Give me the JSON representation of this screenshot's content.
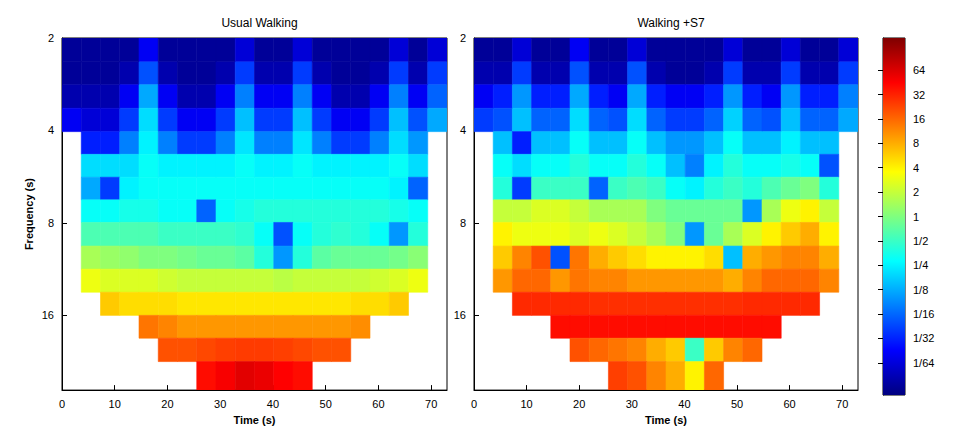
{
  "chart_data": [
    {
      "type": "heatmap",
      "title": "Usual Walking",
      "xlabel": "Time (s)",
      "ylabel": "Frequency (s)",
      "log": "y",
      "grid": false,
      "xlim": [
        0,
        73
      ],
      "xticks": [
        0,
        10,
        20,
        30,
        40,
        50,
        60,
        70
      ],
      "ylim": [
        2,
        28
      ],
      "yticks": [
        2,
        4,
        8,
        16
      ],
      "x": [
        1.8,
        5.5,
        9.1,
        12.8,
        16.4,
        20.1,
        23.7,
        27.4,
        31,
        34.7,
        38.3,
        42,
        45.6,
        49.3,
        52.9,
        56.6,
        60.2,
        63.9,
        67.5,
        71.2
      ],
      "y": [
        2.2,
        2.6,
        3.1,
        3.7,
        4.4,
        5.2,
        6.2,
        7.3,
        8.7,
        10.4,
        12.3,
        14.7,
        17.4,
        20.7,
        24.7
      ],
      "power": [
        [
          0.008,
          0.008,
          0.008,
          0.008,
          0.02,
          0.008,
          0.008,
          0.008,
          0.008,
          0.015,
          0.008,
          0.008,
          0.015,
          0.008,
          0.008,
          0.008,
          0.008,
          0.015,
          0.008,
          0.015
        ],
        [
          0.008,
          0.008,
          0.008,
          0.01,
          0.05,
          0.01,
          0.008,
          0.008,
          0.01,
          0.04,
          0.01,
          0.01,
          0.04,
          0.01,
          0.008,
          0.008,
          0.01,
          0.04,
          0.01,
          0.04
        ],
        [
          0.01,
          0.01,
          0.01,
          0.02,
          0.12,
          0.02,
          0.01,
          0.01,
          0.02,
          0.08,
          0.02,
          0.02,
          0.08,
          0.02,
          0.01,
          0.01,
          0.02,
          0.08,
          0.02,
          0.06
        ],
        [
          0.02,
          0.015,
          0.015,
          0.04,
          0.2,
          0.04,
          0.02,
          0.02,
          0.04,
          0.15,
          0.04,
          0.04,
          0.15,
          0.04,
          0.02,
          0.02,
          0.04,
          0.15,
          0.05,
          0.12
        ],
        [
          null,
          0.03,
          0.03,
          0.08,
          0.25,
          0.08,
          0.04,
          0.04,
          0.08,
          0.22,
          0.08,
          0.08,
          0.22,
          0.08,
          0.04,
          0.04,
          0.08,
          0.2,
          0.1,
          null
        ],
        [
          null,
          0.2,
          0.2,
          0.2,
          0.3,
          0.25,
          0.25,
          0.25,
          0.25,
          0.3,
          0.25,
          0.25,
          0.3,
          0.25,
          0.25,
          0.25,
          0.25,
          0.3,
          0.2,
          null
        ],
        [
          null,
          0.12,
          0.04,
          0.25,
          0.3,
          0.3,
          0.3,
          0.3,
          0.3,
          0.3,
          0.3,
          0.3,
          0.3,
          0.3,
          0.3,
          0.3,
          0.3,
          0.25,
          0.06,
          null
        ],
        [
          null,
          0.3,
          0.3,
          0.35,
          0.35,
          0.3,
          0.3,
          0.06,
          0.3,
          0.35,
          0.4,
          0.4,
          0.4,
          0.4,
          0.4,
          0.4,
          0.4,
          0.35,
          0.3,
          null
        ],
        [
          null,
          0.6,
          0.6,
          0.6,
          0.6,
          0.5,
          0.5,
          0.5,
          0.5,
          0.45,
          0.3,
          0.05,
          0.3,
          0.4,
          0.45,
          0.4,
          0.3,
          0.1,
          0.4,
          null
        ],
        [
          null,
          1.5,
          1.3,
          1.2,
          1,
          1,
          0.9,
          0.8,
          0.8,
          0.7,
          0.4,
          0.1,
          0.4,
          0.7,
          0.8,
          0.8,
          0.8,
          0.9,
          1.1,
          null
        ],
        [
          null,
          3,
          2.5,
          2.5,
          2.5,
          2.2,
          2,
          2,
          2,
          2,
          2,
          1.8,
          2,
          2,
          2,
          2,
          2.2,
          2.5,
          3,
          null
        ],
        [
          null,
          null,
          6,
          5,
          5,
          5,
          4.5,
          4.5,
          4.5,
          4.5,
          4.5,
          4.5,
          4.5,
          4.5,
          4.5,
          5,
          5,
          6,
          null,
          null
        ],
        [
          null,
          null,
          null,
          null,
          14,
          12,
          10,
          10,
          10,
          10,
          10,
          10,
          10,
          10,
          10,
          11,
          null,
          null,
          null,
          null
        ],
        [
          null,
          null,
          null,
          null,
          null,
          20,
          20,
          22,
          24,
          25,
          25,
          24,
          22,
          20,
          20,
          null,
          null,
          null,
          null,
          null
        ],
        [
          null,
          null,
          null,
          null,
          null,
          null,
          null,
          40,
          48,
          60,
          55,
          45,
          40,
          null,
          null,
          null,
          null,
          null,
          null,
          null
        ]
      ]
    },
    {
      "type": "heatmap",
      "title": "Walking +S7",
      "xlabel": "Time (s)",
      "log": "y",
      "grid": false,
      "xlim": [
        0,
        73
      ],
      "xticks": [
        0,
        10,
        20,
        30,
        40,
        50,
        60,
        70
      ],
      "ylim": [
        2,
        28
      ],
      "yticks": [
        2,
        4,
        8,
        16
      ],
      "x": [
        1.8,
        5.5,
        9.1,
        12.8,
        16.4,
        20.1,
        23.7,
        27.4,
        31,
        34.7,
        38.3,
        42,
        45.6,
        49.3,
        52.9,
        56.6,
        60.2,
        63.9,
        67.5,
        71.2
      ],
      "y": [
        2.2,
        2.6,
        3.1,
        3.7,
        4.4,
        5.2,
        6.2,
        7.3,
        8.7,
        10.4,
        12.3,
        14.7,
        17.4,
        20.7,
        24.7
      ],
      "power": [
        [
          0.008,
          0.008,
          0.015,
          0.008,
          0.008,
          0.02,
          0.008,
          0.008,
          0.015,
          0.008,
          0.008,
          0.008,
          0.008,
          0.015,
          0.008,
          0.008,
          0.015,
          0.008,
          0.008,
          0.015
        ],
        [
          0.01,
          0.01,
          0.04,
          0.01,
          0.01,
          0.05,
          0.01,
          0.01,
          0.05,
          0.01,
          0.008,
          0.008,
          0.01,
          0.04,
          0.01,
          0.01,
          0.04,
          0.01,
          0.01,
          0.04
        ],
        [
          0.02,
          0.03,
          0.1,
          0.03,
          0.03,
          0.12,
          0.03,
          0.02,
          0.12,
          0.03,
          0.02,
          0.02,
          0.03,
          0.1,
          0.03,
          0.02,
          0.1,
          0.03,
          0.03,
          0.08
        ],
        [
          0.04,
          0.05,
          0.15,
          0.06,
          0.06,
          0.2,
          0.06,
          0.05,
          0.2,
          0.06,
          0.04,
          0.04,
          0.06,
          0.18,
          0.06,
          0.05,
          0.15,
          0.06,
          0.06,
          0.12
        ],
        [
          null,
          0.15,
          0.03,
          0.15,
          0.15,
          0.3,
          0.15,
          0.15,
          0.3,
          0.15,
          0.1,
          0.1,
          0.15,
          0.3,
          0.15,
          0.15,
          0.25,
          0.15,
          0.15,
          null
        ],
        [
          null,
          0.3,
          0.2,
          0.3,
          0.3,
          0.4,
          0.3,
          0.3,
          0.4,
          0.3,
          0.15,
          0.08,
          0.25,
          0.4,
          0.3,
          0.3,
          0.35,
          0.3,
          0.05,
          null
        ],
        [
          null,
          0.4,
          0.04,
          0.5,
          0.5,
          0.5,
          0.06,
          0.5,
          0.6,
          0.5,
          0.3,
          0.25,
          0.4,
          0.5,
          0.4,
          0.6,
          0.8,
          1,
          0.4,
          null
        ],
        [
          null,
          2,
          2,
          2.5,
          2.5,
          2,
          1.5,
          1.5,
          1.5,
          1,
          0.8,
          0.8,
          0.8,
          0.8,
          0.1,
          1.5,
          3,
          4,
          2,
          null
        ],
        [
          null,
          4,
          3,
          3,
          3,
          2.5,
          3,
          2.5,
          2,
          1.5,
          1,
          0.1,
          0.8,
          1.5,
          2.5,
          4,
          6,
          8,
          4,
          null
        ],
        [
          null,
          6,
          12,
          20,
          0.05,
          14,
          8,
          6,
          5,
          4,
          4,
          4,
          5,
          0.15,
          8,
          10,
          12,
          12,
          8,
          null
        ],
        [
          null,
          10,
          16,
          16,
          10,
          14,
          12,
          12,
          10,
          10,
          10,
          10,
          10,
          8,
          12,
          16,
          16,
          16,
          12,
          null
        ],
        [
          null,
          null,
          30,
          30,
          30,
          30,
          28,
          28,
          28,
          28,
          28,
          28,
          28,
          28,
          30,
          30,
          30,
          30,
          null,
          null
        ],
        [
          null,
          null,
          null,
          null,
          40,
          40,
          40,
          40,
          40,
          40,
          40,
          40,
          40,
          40,
          40,
          40,
          null,
          null,
          null,
          null
        ],
        [
          null,
          null,
          null,
          null,
          null,
          20,
          16,
          14,
          12,
          8,
          6,
          0.5,
          6,
          12,
          16,
          null,
          null,
          null,
          null,
          null
        ],
        [
          null,
          null,
          null,
          null,
          null,
          null,
          null,
          24,
          20,
          12,
          8,
          4,
          16,
          null,
          null,
          null,
          null,
          null,
          null,
          null
        ]
      ],
      "colorbar": {
        "range": [
          0.00625,
          160
        ],
        "ticks": [
          {
            "value": 0.015625,
            "label": "1/64"
          },
          {
            "value": 0.03125,
            "label": "1/32"
          },
          {
            "value": 0.0625,
            "label": "1/16"
          },
          {
            "value": 0.125,
            "label": "1/8"
          },
          {
            "value": 0.25,
            "label": "1/4"
          },
          {
            "value": 0.5,
            "label": "1/2"
          },
          1,
          2,
          4,
          8,
          16,
          32,
          64
        ]
      }
    }
  ]
}
